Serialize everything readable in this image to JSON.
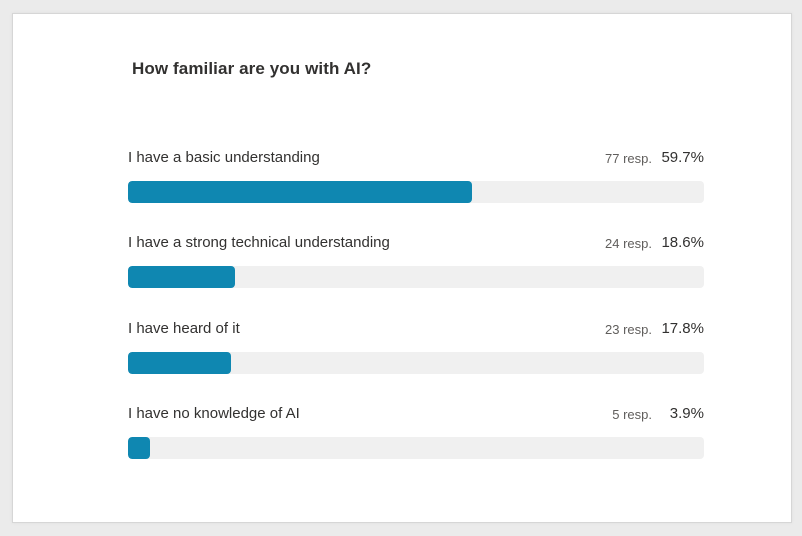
{
  "survey": {
    "question": "How familiar are you with AI?"
  },
  "colors": {
    "bar_fill": "#0f87b1",
    "bar_track": "#f0f0f0"
  },
  "chart_data": {
    "type": "bar",
    "orientation": "horizontal",
    "title": "How familiar are you with AI?",
    "categories": [
      "I have a basic understanding",
      "I have a strong technical understanding",
      "I have heard of it",
      "I have no knowledge of AI"
    ],
    "series": [
      {
        "values": [
          59.7,
          18.6,
          17.8,
          3.9
        ]
      }
    ],
    "responses": [
      77,
      24,
      23,
      5
    ],
    "response_labels": [
      "77 resp.",
      "24 resp.",
      "23 resp.",
      "5 resp."
    ],
    "percent_labels": [
      "59.7%",
      "18.6%",
      "17.8%",
      "3.9%"
    ],
    "xlim": [
      0,
      100
    ],
    "grid": false,
    "legend": "none"
  }
}
